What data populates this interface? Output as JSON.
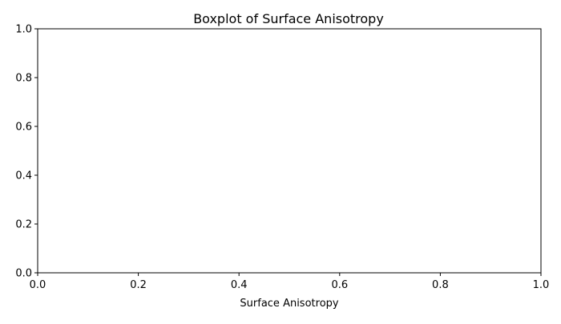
{
  "chart_data": {
    "type": "box",
    "title": "Boxplot of Surface Anisotropy",
    "xlabel": "Surface Anisotropy",
    "ylabel": "",
    "xlim": [
      0,
      1
    ],
    "ylim": [
      0,
      1
    ],
    "x_ticks": [
      0.0,
      0.2,
      0.4,
      0.6,
      0.8,
      1.0
    ],
    "y_ticks": [
      0.0,
      0.2,
      0.4,
      0.6,
      0.8,
      1.0
    ],
    "x_tick_labels": [
      "0.0",
      "0.2",
      "0.4",
      "0.6",
      "0.8",
      "1.0"
    ],
    "y_tick_labels": [
      "0.0",
      "0.2",
      "0.4",
      "0.6",
      "0.8",
      "1.0"
    ],
    "series": [],
    "grid": false,
    "legend": "none"
  }
}
